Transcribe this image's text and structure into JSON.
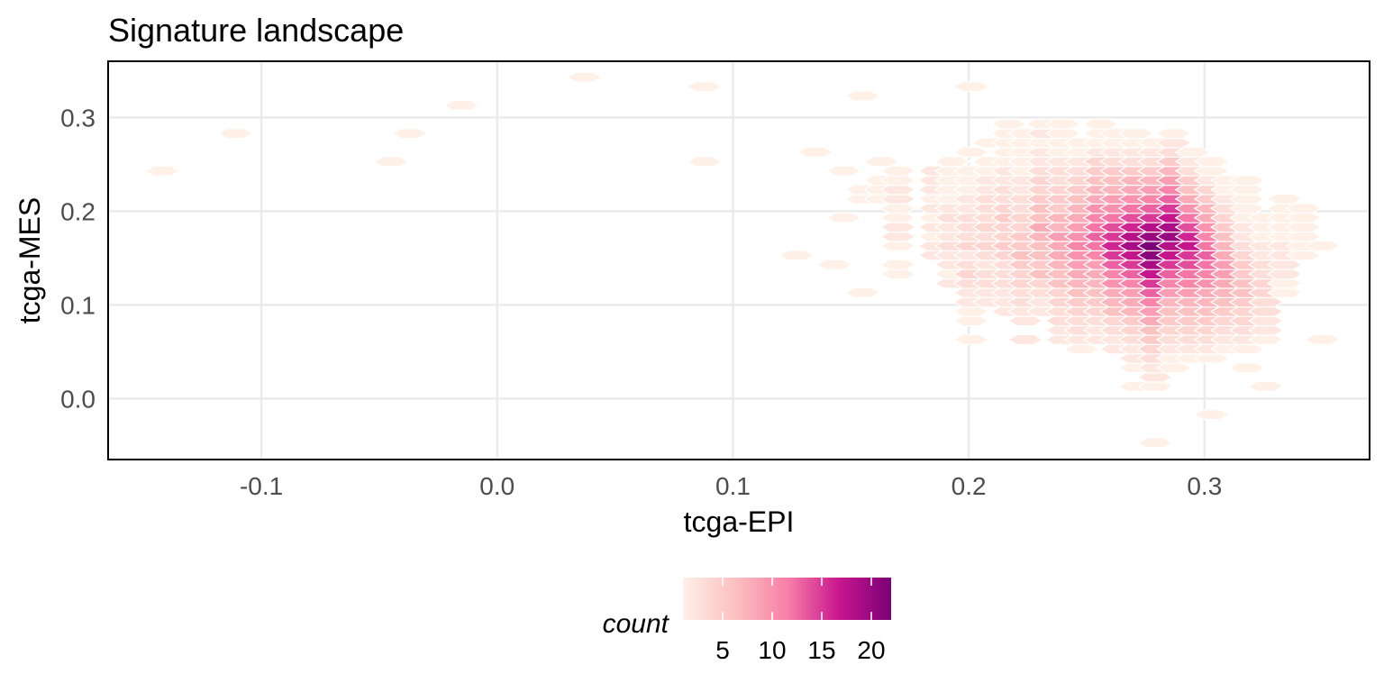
{
  "chart_data": {
    "type": "heatmap",
    "subtype": "hexbin",
    "title": "Signature landscape",
    "xlabel": "tcga-EPI",
    "ylabel": "tcga-MES",
    "xlim": [
      -0.165,
      0.37
    ],
    "ylim": [
      -0.065,
      0.36
    ],
    "x_ticks": [
      -0.1,
      0.0,
      0.1,
      0.2,
      0.3
    ],
    "x_tick_labels": [
      "-0.1",
      "0.0",
      "0.1",
      "0.2",
      "0.3"
    ],
    "y_ticks": [
      0.0,
      0.1,
      0.2,
      0.3
    ],
    "y_tick_labels": [
      "0.0",
      "0.1",
      "0.2",
      "0.3"
    ],
    "grid": true,
    "legend": {
      "title": "count",
      "placement": "bottom",
      "range": [
        1,
        22
      ],
      "ticks": [
        5,
        10,
        15,
        20
      ],
      "tick_labels": [
        "5",
        "10",
        "15",
        "20"
      ],
      "colors": [
        "#fff0e8",
        "#fbc0c0",
        "#f880a8",
        "#c8168e",
        "#7a0177"
      ]
    },
    "hex_cols": [
      {
        "x": -0.142,
        "y0": 0.243,
        "counts": [
          1
        ]
      },
      {
        "x": -0.111,
        "y0": 0.283,
        "counts": [
          1
        ]
      },
      {
        "x": -0.045,
        "y0": 0.253,
        "counts": [
          1
        ]
      },
      {
        "x": -0.037,
        "y0": 0.283,
        "counts": [
          1
        ]
      },
      {
        "x": -0.015,
        "y0": 0.313,
        "counts": [
          1
        ]
      },
      {
        "x": 0.037,
        "y0": 0.343,
        "counts": [
          1
        ]
      },
      {
        "x": 0.088,
        "y0": 0.253,
        "counts": [
          1
        ]
      },
      {
        "x": 0.088,
        "y0": 0.333,
        "counts": [
          1
        ]
      },
      {
        "x": 0.127,
        "y0": 0.153,
        "counts": [
          1
        ]
      },
      {
        "x": 0.135,
        "y0": 0.263,
        "counts": [
          1
        ]
      },
      {
        "x": 0.143,
        "y0": 0.143,
        "counts": [
          1
        ]
      },
      {
        "x": 0.147,
        "y0": 0.243,
        "counts": [
          1
        ]
      },
      {
        "x": 0.147,
        "y0": 0.193,
        "counts": [
          1
        ]
      },
      {
        "x": 0.155,
        "y0": 0.113,
        "counts": [
          1,
          0,
          0,
          0,
          0,
          0,
          0,
          0,
          0,
          0,
          1,
          1,
          0,
          0,
          0,
          0,
          0,
          0,
          0,
          0,
          0,
          1
        ]
      },
      {
        "x": 0.155,
        "y0": 0.123,
        "counts": [
          0
        ]
      },
      {
        "x": 0.163,
        "y0": 0.213,
        "counts": [
          1,
          1,
          1,
          0,
          1
        ]
      },
      {
        "x": 0.17,
        "y0": 0.133,
        "counts": [
          1,
          1,
          0,
          1,
          2,
          2,
          1,
          1,
          2,
          2,
          1,
          1
        ]
      },
      {
        "x": 0.186,
        "y0": 0.153,
        "counts": [
          2,
          2,
          1,
          2,
          1,
          2,
          1,
          2,
          2,
          2
        ]
      },
      {
        "x": 0.193,
        "y0": 0.123,
        "counts": [
          2,
          1,
          2,
          2,
          3,
          2,
          2,
          3,
          2,
          1,
          1,
          1,
          1,
          1
        ]
      },
      {
        "x": 0.201,
        "y0": 0.063,
        "counts": [
          1,
          0,
          1,
          1,
          2,
          2,
          3,
          4,
          3,
          2,
          4,
          3,
          3,
          3,
          2,
          2,
          1,
          1,
          1,
          0,
          1,
          0,
          0,
          0,
          0,
          0,
          0,
          1
        ]
      },
      {
        "x": 0.209,
        "y0": 0.103,
        "counts": [
          2,
          2,
          3,
          3,
          2,
          3,
          4,
          3,
          4,
          3,
          3,
          3,
          2,
          2,
          1,
          1,
          0,
          1
        ]
      },
      {
        "x": 0.217,
        "y0": 0.093,
        "counts": [
          2,
          2,
          2,
          3,
          3,
          3,
          4,
          5,
          4,
          4,
          5,
          4,
          3,
          3,
          2,
          2,
          1,
          1,
          1,
          1,
          1
        ]
      },
      {
        "x": 0.224,
        "y0": 0.063,
        "counts": [
          2,
          0,
          2,
          2,
          3,
          3,
          4,
          4,
          5,
          6,
          5,
          5,
          4,
          4,
          3,
          3,
          2,
          2,
          1,
          1,
          1,
          1,
          1
        ]
      },
      {
        "x": 0.232,
        "y0": 0.093,
        "counts": [
          2,
          2,
          3,
          4,
          6,
          5,
          6,
          6,
          7,
          8,
          6,
          6,
          5,
          4,
          4,
          3,
          2,
          2,
          1,
          2,
          1
        ]
      },
      {
        "x": 0.24,
        "y0": 0.063,
        "counts": [
          2,
          2,
          3,
          3,
          4,
          4,
          6,
          6,
          7,
          8,
          8,
          9,
          7,
          7,
          5,
          5,
          4,
          3,
          3,
          2,
          1,
          1,
          1,
          1
        ]
      },
      {
        "x": 0.248,
        "y0": 0.053,
        "counts": [
          1,
          2,
          3,
          3,
          4,
          5,
          6,
          7,
          8,
          9,
          10,
          11,
          10,
          9,
          8,
          7,
          6,
          5,
          4,
          3,
          2,
          1,
          1
        ]
      },
      {
        "x": 0.256,
        "y0": 0.063,
        "counts": [
          2,
          2,
          3,
          4,
          5,
          6,
          7,
          8,
          9,
          11,
          12,
          13,
          12,
          11,
          10,
          8,
          7,
          6,
          5,
          4,
          2,
          1,
          1,
          1
        ]
      },
      {
        "x": 0.263,
        "y0": 0.053,
        "counts": [
          2,
          2,
          3,
          4,
          6,
          7,
          8,
          10,
          11,
          13,
          15,
          16,
          15,
          14,
          12,
          10,
          9,
          7,
          6,
          5,
          3,
          2,
          1,
          1
        ]
      },
      {
        "x": 0.271,
        "y0": 0.013,
        "counts": [
          1,
          0,
          1,
          2,
          2,
          3,
          4,
          5,
          7,
          8,
          9,
          11,
          13,
          15,
          17,
          19,
          18,
          16,
          14,
          12,
          10,
          8,
          7,
          5,
          3,
          2,
          1,
          1
        ]
      },
      {
        "x": 0.279,
        "y0": -0.047,
        "counts": [
          1,
          0,
          0,
          0,
          0,
          0,
          1,
          2,
          2,
          3,
          4,
          5,
          6,
          8,
          9,
          11,
          13,
          15,
          17,
          19,
          21,
          22,
          20,
          18,
          15,
          13,
          11,
          9,
          7,
          5,
          3,
          2,
          1
        ]
      },
      {
        "x": 0.287,
        "y0": 0.033,
        "counts": [
          1,
          1,
          2,
          3,
          4,
          5,
          6,
          7,
          9,
          11,
          13,
          15,
          17,
          18,
          20,
          19,
          17,
          15,
          13,
          11,
          9,
          7,
          5,
          3,
          2,
          1
        ]
      },
      {
        "x": 0.295,
        "y0": 0.043,
        "counts": [
          1,
          2,
          3,
          4,
          5,
          6,
          7,
          9,
          11,
          12,
          14,
          15,
          17,
          16,
          14,
          12,
          10,
          8,
          6,
          5,
          3,
          2,
          1
        ]
      },
      {
        "x": 0.303,
        "y0": -0.017,
        "counts": [
          1,
          0,
          0,
          0,
          0,
          0,
          1,
          2,
          3,
          4,
          5,
          6,
          7,
          8,
          10,
          11,
          12,
          13,
          12,
          11,
          10,
          8,
          7,
          5,
          4,
          2,
          1,
          1
        ]
      },
      {
        "x": 0.31,
        "y0": 0.053,
        "counts": [
          1,
          2,
          3,
          4,
          5,
          6,
          7,
          8,
          9,
          9,
          8,
          7,
          6,
          5,
          4,
          3,
          2,
          1,
          1
        ]
      },
      {
        "x": 0.318,
        "y0": 0.033,
        "counts": [
          1,
          0,
          1,
          2,
          3,
          4,
          4,
          5,
          6,
          6,
          5,
          5,
          4,
          3,
          2,
          2,
          1,
          1,
          1,
          1,
          1
        ]
      },
      {
        "x": 0.326,
        "y0": 0.013,
        "counts": [
          1,
          0,
          0,
          0,
          0,
          1,
          2,
          2,
          3,
          3,
          4,
          4,
          3,
          3,
          2,
          2,
          1,
          1,
          1
        ]
      },
      {
        "x": 0.334,
        "y0": 0.113,
        "counts": [
          1,
          1,
          2,
          2,
          2,
          2,
          1,
          1,
          1,
          1,
          1
        ]
      },
      {
        "x": 0.342,
        "y0": 0.153,
        "counts": [
          1,
          1,
          1,
          1,
          1,
          1
        ]
      },
      {
        "x": 0.35,
        "y0": 0.063,
        "counts": [
          1,
          0,
          0,
          0,
          0,
          0,
          0,
          0,
          0,
          0,
          1
        ]
      }
    ]
  }
}
